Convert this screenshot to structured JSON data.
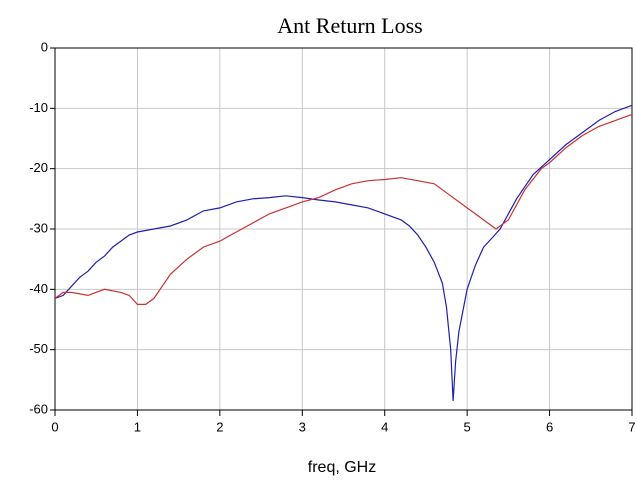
{
  "chart_data": {
    "type": "line",
    "title": "Ant Return Loss",
    "x_label": "freq, GHz",
    "xlim": [
      0,
      7
    ],
    "xticks": [
      0,
      1,
      2,
      3,
      4,
      5,
      6,
      7
    ],
    "ylim": [
      -60,
      0
    ],
    "yticks": [
      0,
      -10,
      -20,
      -30,
      -40,
      -50,
      -60
    ],
    "grid": true,
    "series": [
      {
        "color": "#1f1fb0",
        "x": [
          0,
          0.1,
          0.2,
          0.3,
          0.4,
          0.5,
          0.6,
          0.7,
          0.8,
          0.9,
          1.0,
          1.2,
          1.4,
          1.6,
          1.8,
          2.0,
          2.2,
          2.4,
          2.6,
          2.8,
          3.0,
          3.2,
          3.4,
          3.6,
          3.8,
          4.0,
          4.2,
          4.3,
          4.4,
          4.5,
          4.6,
          4.7,
          4.75,
          4.8,
          4.83,
          4.86,
          4.9,
          5.0,
          5.1,
          5.2,
          5.3,
          5.4,
          5.6,
          5.8,
          6.0,
          6.2,
          6.4,
          6.6,
          6.8,
          7.0
        ],
        "values": [
          -41.5,
          -41,
          -39.5,
          -38,
          -37,
          -35.5,
          -34.5,
          -33,
          -32,
          -31,
          -30.5,
          -30,
          -29.5,
          -28.5,
          -27,
          -26.5,
          -25.5,
          -25,
          -24.8,
          -24.5,
          -24.8,
          -25.2,
          -25.5,
          -26,
          -26.5,
          -27.5,
          -28.5,
          -29.5,
          -31,
          -33,
          -35.5,
          -39,
          -43,
          -50,
          -58.5,
          -52,
          -47,
          -40,
          -36,
          -33,
          -31.5,
          -30,
          -25,
          -21,
          -18.5,
          -16,
          -14,
          -12,
          -10.5,
          -9.5
        ]
      },
      {
        "color": "#c83232",
        "x": [
          0,
          0.1,
          0.2,
          0.4,
          0.6,
          0.8,
          0.9,
          1.0,
          1.1,
          1.2,
          1.3,
          1.4,
          1.6,
          1.8,
          2.0,
          2.2,
          2.4,
          2.6,
          2.8,
          3.0,
          3.2,
          3.4,
          3.6,
          3.8,
          4.0,
          4.2,
          4.4,
          4.6,
          4.8,
          5.0,
          5.2,
          5.35,
          5.5,
          5.7,
          5.9,
          6.0,
          6.2,
          6.4,
          6.6,
          6.8,
          7.0
        ],
        "values": [
          -41.5,
          -40.5,
          -40.5,
          -41,
          -40,
          -40.5,
          -41,
          -42.5,
          -42.5,
          -41.5,
          -39.5,
          -37.5,
          -35,
          -33,
          -32,
          -30.5,
          -29,
          -27.5,
          -26.5,
          -25.5,
          -24.8,
          -23.5,
          -22.5,
          -22,
          -21.8,
          -21.5,
          -22,
          -22.5,
          -24.5,
          -26.5,
          -28.5,
          -30,
          -28.5,
          -23.5,
          -20,
          -19,
          -16.5,
          -14.5,
          -13,
          -12,
          -11
        ]
      }
    ]
  }
}
